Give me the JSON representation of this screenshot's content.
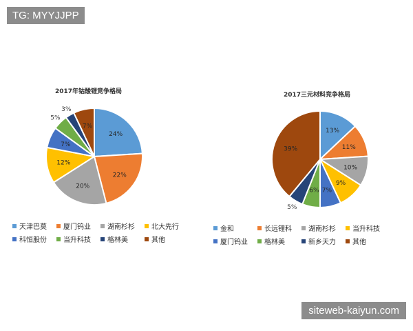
{
  "watermarks": {
    "top": "TG: MYYJJPP",
    "bottom": "siteweb-kaiyun.com"
  },
  "chart_data": [
    {
      "type": "pie",
      "title": "2017年钴酸锂竞争格局",
      "categories": [
        "天津巴莫",
        "厦门钨业",
        "湖南杉杉",
        "北大先行",
        "科恒股份",
        "当升科技",
        "格林美",
        "其他"
      ],
      "values": [
        24,
        22,
        20,
        12,
        7,
        5,
        3,
        7
      ],
      "labels": [
        "24%",
        "22%",
        "20%",
        "12%",
        "7%",
        "5%",
        "3%",
        "7%"
      ],
      "colors": [
        "#5b9bd5",
        "#ed7d31",
        "#a5a5a5",
        "#ffc000",
        "#4472c4",
        "#70ad47",
        "#264478",
        "#9e480e"
      ],
      "legend": "bottom"
    },
    {
      "type": "pie",
      "title": "2017三元材料竞争格局",
      "categories": [
        "金和",
        "长远锂科",
        "湖南杉杉",
        "当升科技",
        "厦门钨业",
        "格林美",
        "新乡天力",
        "其他"
      ],
      "values": [
        13,
        11,
        10,
        9,
        7,
        6,
        5,
        39
      ],
      "labels": [
        "13%",
        "11%",
        "10%",
        "9%",
        "7%",
        "6%",
        "5%",
        "39%"
      ],
      "colors": [
        "#5b9bd5",
        "#ed7d31",
        "#a5a5a5",
        "#ffc000",
        "#4472c4",
        "#70ad47",
        "#264478",
        "#9e480e"
      ],
      "legend": "bottom"
    }
  ]
}
